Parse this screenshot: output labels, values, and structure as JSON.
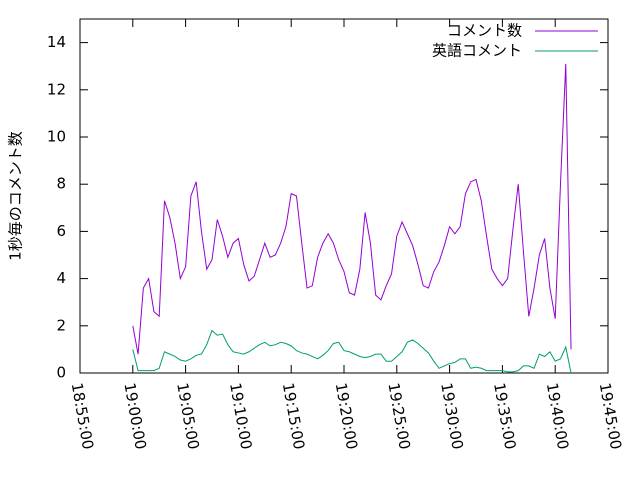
{
  "chart_data": {
    "type": "line",
    "ylabel": "1秒毎のコメント数",
    "x": [
      "19:00:00",
      "19:00:30",
      "19:01:00",
      "19:01:30",
      "19:02:00",
      "19:02:30",
      "19:03:00",
      "19:03:30",
      "19:04:00",
      "19:04:30",
      "19:05:00",
      "19:05:30",
      "19:06:00",
      "19:06:30",
      "19:07:00",
      "19:07:30",
      "19:08:00",
      "19:08:30",
      "19:09:00",
      "19:09:30",
      "19:10:00",
      "19:10:30",
      "19:11:00",
      "19:11:30",
      "19:12:00",
      "19:12:30",
      "19:13:00",
      "19:13:30",
      "19:14:00",
      "19:14:30",
      "19:15:00",
      "19:15:30",
      "19:16:00",
      "19:16:30",
      "19:17:00",
      "19:17:30",
      "19:18:00",
      "19:18:30",
      "19:19:00",
      "19:19:30",
      "19:20:00",
      "19:20:30",
      "19:21:00",
      "19:21:30",
      "19:22:00",
      "19:22:30",
      "19:23:00",
      "19:23:30",
      "19:24:00",
      "19:24:30",
      "19:25:00",
      "19:25:30",
      "19:26:00",
      "19:26:30",
      "19:27:00",
      "19:27:30",
      "19:28:00",
      "19:28:30",
      "19:29:00",
      "19:29:30",
      "19:30:00",
      "19:30:30",
      "19:31:00",
      "19:31:30",
      "19:32:00",
      "19:32:30",
      "19:33:00",
      "19:33:30",
      "19:34:00",
      "19:34:30",
      "19:35:00",
      "19:35:30",
      "19:36:00",
      "19:36:30",
      "19:37:00",
      "19:37:30",
      "19:38:00",
      "19:38:30",
      "19:39:00",
      "19:39:30",
      "19:40:00",
      "19:40:30",
      "19:41:00",
      "19:41:30"
    ],
    "series": [
      {
        "name": "コメント数",
        "color": "#9400d3",
        "values": [
          2.0,
          0.8,
          3.6,
          4.0,
          2.6,
          2.4,
          7.3,
          6.6,
          5.5,
          4.0,
          4.5,
          7.5,
          8.1,
          6.0,
          4.4,
          4.8,
          6.5,
          5.8,
          4.9,
          5.5,
          5.7,
          4.6,
          3.9,
          4.1,
          4.8,
          5.5,
          4.9,
          5.0,
          5.5,
          6.2,
          7.6,
          7.5,
          5.5,
          3.6,
          3.7,
          4.9,
          5.5,
          5.9,
          5.5,
          4.8,
          4.3,
          3.4,
          3.3,
          4.4,
          6.8,
          5.5,
          3.3,
          3.1,
          3.7,
          4.2,
          5.8,
          6.4,
          5.9,
          5.4,
          4.6,
          3.7,
          3.6,
          4.3,
          4.7,
          5.4,
          6.2,
          5.9,
          6.2,
          7.6,
          8.1,
          8.2,
          7.3,
          5.8,
          4.4,
          4.0,
          3.7,
          4.0,
          6.1,
          8.0,
          5.1,
          2.4,
          3.6,
          5.0,
          5.7,
          3.6,
          2.3,
          8.0,
          13.1,
          1.0
        ]
      },
      {
        "name": "英語コメント",
        "color": "#009e73",
        "values": [
          1.0,
          0.1,
          0.1,
          0.1,
          0.1,
          0.2,
          0.9,
          0.8,
          0.7,
          0.55,
          0.5,
          0.6,
          0.75,
          0.8,
          1.2,
          1.8,
          1.6,
          1.65,
          1.2,
          0.9,
          0.85,
          0.8,
          0.9,
          1.05,
          1.2,
          1.3,
          1.15,
          1.2,
          1.3,
          1.25,
          1.15,
          0.95,
          0.85,
          0.8,
          0.7,
          0.6,
          0.75,
          0.95,
          1.25,
          1.3,
          0.95,
          0.9,
          0.8,
          0.7,
          0.65,
          0.7,
          0.8,
          0.8,
          0.5,
          0.5,
          0.7,
          0.9,
          1.3,
          1.4,
          1.25,
          1.05,
          0.85,
          0.5,
          0.2,
          0.3,
          0.4,
          0.45,
          0.6,
          0.6,
          0.2,
          0.25,
          0.2,
          0.1,
          0.1,
          0.1,
          0.1,
          0.05,
          0.05,
          0.1,
          0.3,
          0.3,
          0.2,
          0.8,
          0.7,
          0.9,
          0.5,
          0.6,
          1.1,
          0.0
        ]
      }
    ],
    "xlim": [
      "18:55:00",
      "19:45:00"
    ],
    "xticks": [
      "18:55:00",
      "19:00:00",
      "19:05:00",
      "19:10:00",
      "19:15:00",
      "19:20:00",
      "19:25:00",
      "19:30:00",
      "19:35:00",
      "19:40:00",
      "19:45:00"
    ],
    "ylim": [
      0,
      15
    ],
    "yticks": [
      0,
      2,
      4,
      6,
      8,
      10,
      12,
      14
    ],
    "grid": false,
    "legend": "top-right"
  }
}
